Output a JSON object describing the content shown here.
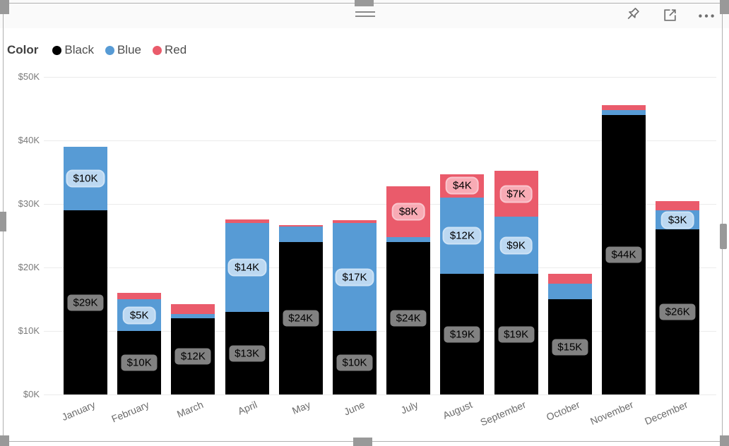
{
  "visual": {
    "type": "stacked-column-chart",
    "border_color": "#b0b0b0",
    "handle_color": "#999999"
  },
  "toolbar": {
    "icons": [
      "pin-icon",
      "focus-mode-icon",
      "more-options-icon"
    ]
  },
  "legend": {
    "title": "Color",
    "items": [
      {
        "label": "Black",
        "color": "#000000"
      },
      {
        "label": "Blue",
        "color": "#579bd5"
      },
      {
        "label": "Red",
        "color": "#ea5b6b"
      }
    ]
  },
  "chart_data": {
    "type": "bar",
    "stacked": true,
    "title": "",
    "xlabel": "",
    "ylabel": "",
    "ylim": [
      0,
      50
    ],
    "grid": true,
    "legend_position": "top-left",
    "y_ticks": [
      "$0K",
      "$10K",
      "$20K",
      "$30K",
      "$40K",
      "$50K"
    ],
    "categories": [
      "January",
      "February",
      "March",
      "April",
      "May",
      "June",
      "July",
      "August",
      "September",
      "October",
      "November",
      "December"
    ],
    "series": [
      {
        "name": "Black",
        "color": "#000000",
        "values": [
          29,
          10,
          12,
          13,
          24,
          10,
          24,
          19,
          19,
          15,
          44,
          26
        ],
        "labels": [
          "$29K",
          "$10K",
          "$12K",
          "$13K",
          "$24K",
          "$10K",
          "$24K",
          "$19K",
          "$19K",
          "$15K",
          "$44K",
          "$26K"
        ]
      },
      {
        "name": "Blue",
        "color": "#579bd5",
        "values": [
          10,
          5,
          0.7,
          14,
          2.4,
          17,
          0.8,
          12,
          9,
          2.5,
          0.8,
          3
        ],
        "labels": [
          "$10K",
          "$5K",
          null,
          "$14K",
          null,
          "$17K",
          null,
          "$12K",
          "$9K",
          null,
          null,
          "$3K"
        ]
      },
      {
        "name": "Red",
        "color": "#ea5b6b",
        "values": [
          0,
          1,
          1.5,
          0.6,
          0.25,
          0.4,
          8,
          3.7,
          7.2,
          1.5,
          0.8,
          1.5
        ],
        "labels": [
          null,
          null,
          null,
          null,
          null,
          null,
          "$8K",
          "$4K",
          "$7K",
          null,
          null,
          null
        ]
      }
    ]
  }
}
